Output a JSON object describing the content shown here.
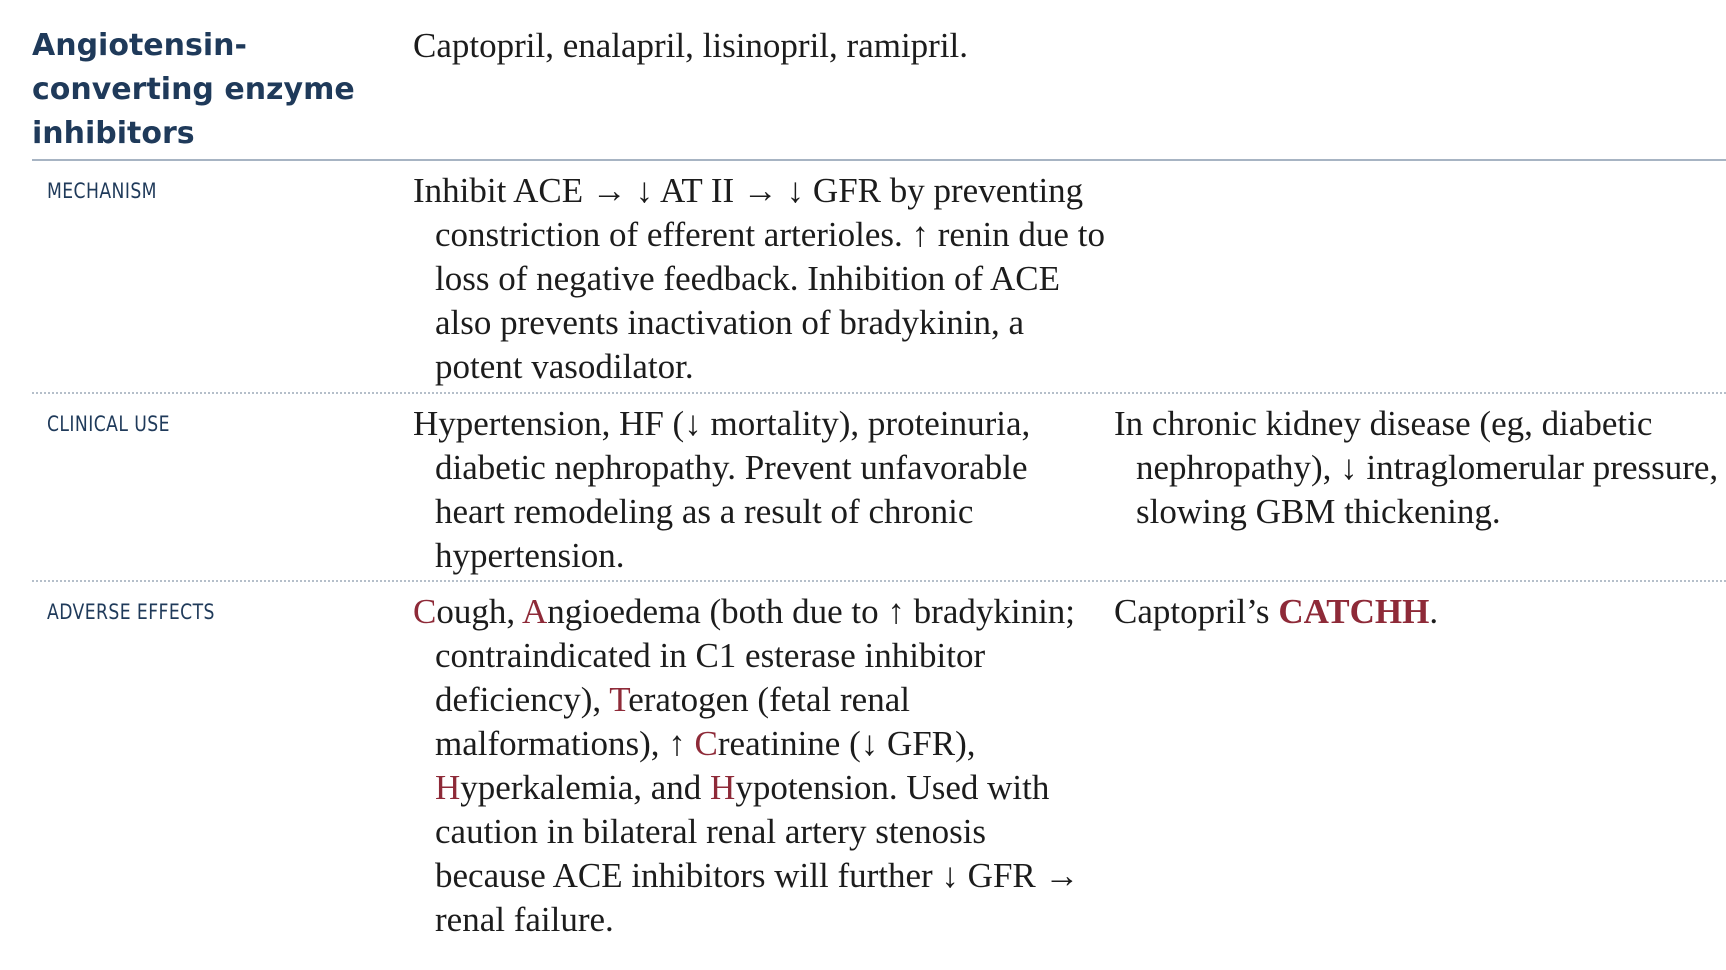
{
  "header": {
    "title_line1": "Angiotensin-",
    "title_line2": "converting enzyme",
    "title_line3": "inhibitors",
    "drugs": "Captopril, enalapril, lisinopril, ramipril."
  },
  "mechanism": {
    "label": "MECHANISM",
    "text": "Inhibit ACE → ↓ AT II → ↓ GFR by preventing constriction of efferent arterioles. ↑ renin due to loss of negative feedback. Inhibition of ACE also prevents inactivation of bradykinin, a potent vasodilator."
  },
  "clinical_use": {
    "label": "CLINICAL USE",
    "text": "Hypertension, HF (↓ mortality), proteinuria, diabetic nephropathy. Prevent unfavorable heart remodeling as a result of chronic hypertension.",
    "note": "In chronic kidney disease (eg, diabetic nephropathy), ↓ intraglomerular pressure, slowing GBM thickening."
  },
  "adverse_effects": {
    "label": "ADVERSE EFFECTS",
    "parts": {
      "c1": "C",
      "t1": "ough, ",
      "a": "A",
      "t2": "ngioedema (both due to ↑ bradykinin; contraindicated in C1 esterase inhibitor deficiency), ",
      "t": "T",
      "t3": "eratogen (fetal renal malformations), ↑ ",
      "c2": "C",
      "t4": "reatinine (↓ GFR), ",
      "h1": "H",
      "t5": "yperkalemia, and ",
      "h2": "H",
      "t6": "ypotension. Used with caution in bilateral renal artery stenosis because ACE inhibitors will further ↓ GFR → renal failure."
    },
    "note_prefix": "Captopril’s ",
    "mnemonic": "CATCHH",
    "note_suffix": "."
  },
  "colors": {
    "heading": "#1f3a5a",
    "highlight": "#8e2a38",
    "rule": "#a7b4c3"
  }
}
